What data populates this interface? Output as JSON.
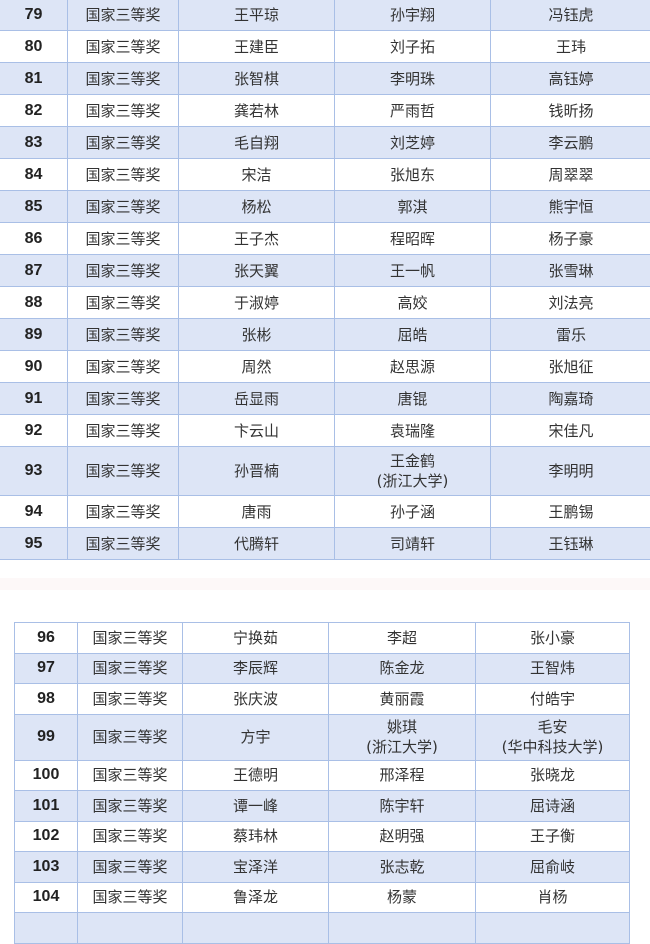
{
  "table1": {
    "rows": [
      {
        "no": "79",
        "award": "国家三等奖",
        "a": "王平琼",
        "b": "孙宇翔",
        "c": "冯钰虎"
      },
      {
        "no": "80",
        "award": "国家三等奖",
        "a": "王建臣",
        "b": "刘子拓",
        "c": "王玮"
      },
      {
        "no": "81",
        "award": "国家三等奖",
        "a": "张智棋",
        "b": "李明珠",
        "c": "高钰婷"
      },
      {
        "no": "82",
        "award": "国家三等奖",
        "a": "龚若林",
        "b": "严雨哲",
        "c": "钱昕扬"
      },
      {
        "no": "83",
        "award": "国家三等奖",
        "a": "毛自翔",
        "b": "刘芝婷",
        "c": "李云鹏"
      },
      {
        "no": "84",
        "award": "国家三等奖",
        "a": "宋洁",
        "b": "张旭东",
        "c": "周翠翠"
      },
      {
        "no": "85",
        "award": "国家三等奖",
        "a": "杨松",
        "b": "郭淇",
        "c": "熊宇恒"
      },
      {
        "no": "86",
        "award": "国家三等奖",
        "a": "王子杰",
        "b": "程昭晖",
        "c": "杨子豪"
      },
      {
        "no": "87",
        "award": "国家三等奖",
        "a": "张天翼",
        "b": "王一帆",
        "c": "张雪琳"
      },
      {
        "no": "88",
        "award": "国家三等奖",
        "a": "于淑婷",
        "b": "高姣",
        "c": "刘法亮"
      },
      {
        "no": "89",
        "award": "国家三等奖",
        "a": "张彬",
        "b": "屈皓",
        "c": "雷乐"
      },
      {
        "no": "90",
        "award": "国家三等奖",
        "a": "周然",
        "b": "赵思源",
        "c": "张旭征"
      },
      {
        "no": "91",
        "award": "国家三等奖",
        "a": "岳显雨",
        "b": "唐锟",
        "c": "陶嘉琦"
      },
      {
        "no": "92",
        "award": "国家三等奖",
        "a": "卞云山",
        "b": "袁瑞隆",
        "c": "宋佳凡"
      },
      {
        "no": "93",
        "award": "国家三等奖",
        "a": "孙晋楠",
        "b": "王金鹤",
        "b2": "(浙江大学)",
        "c": "李明明"
      },
      {
        "no": "94",
        "award": "国家三等奖",
        "a": "唐雨",
        "b": "孙子涵",
        "c": "王鹏锡"
      },
      {
        "no": "95",
        "award": "国家三等奖",
        "a": "代腾轩",
        "b": "司靖轩",
        "c": "王钰琳"
      }
    ]
  },
  "table2": {
    "rows": [
      {
        "no": "96",
        "award": "国家三等奖",
        "a": "宁换茹",
        "b": "李超",
        "c": "张小豪"
      },
      {
        "no": "97",
        "award": "国家三等奖",
        "a": "李辰辉",
        "b": "陈金龙",
        "c": "王智炜"
      },
      {
        "no": "98",
        "award": "国家三等奖",
        "a": "张庆波",
        "b": "黄丽霞",
        "c": "付皓宇"
      },
      {
        "no": "99",
        "award": "国家三等奖",
        "a": "方宇",
        "b": "姚琪",
        "b2": "(浙江大学)",
        "c": "毛安",
        "c2": "(华中科技大学)"
      },
      {
        "no": "100",
        "award": "国家三等奖",
        "a": "王德明",
        "b": "邢泽程",
        "c": "张晓龙"
      },
      {
        "no": "101",
        "award": "国家三等奖",
        "a": "谭一峰",
        "b": "陈宇轩",
        "c": "屈诗涵"
      },
      {
        "no": "102",
        "award": "国家三等奖",
        "a": "蔡玮林",
        "b": "赵明强",
        "c": "王子衡"
      },
      {
        "no": "103",
        "award": "国家三等奖",
        "a": "宝泽洋",
        "b": "张志乾",
        "c": "屈俞岐"
      },
      {
        "no": "104",
        "award": "国家三等奖",
        "a": "鲁泽龙",
        "b": "杨蒙",
        "c": "肖杨"
      }
    ]
  },
  "colors": {
    "row_shade": "#dde5f6",
    "border": "#a9bfe6"
  }
}
